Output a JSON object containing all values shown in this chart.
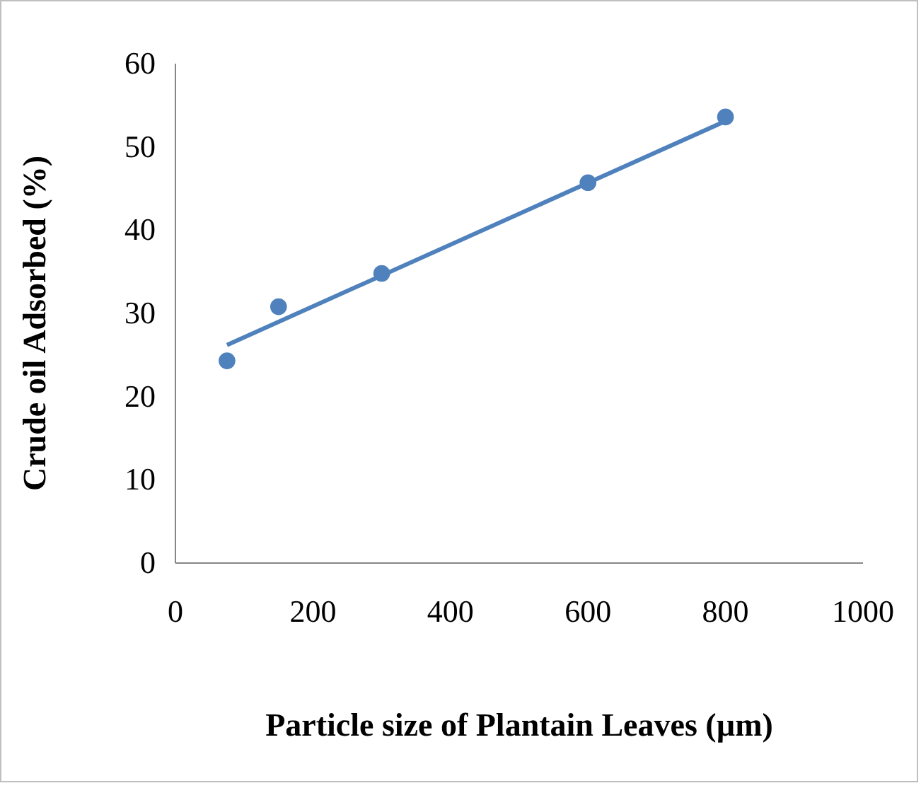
{
  "chart_data": {
    "type": "scatter",
    "xlabel": "Particle size of Plantain Leaves (µm)",
    "ylabel": "Crude oil Adsorbed (%)",
    "xlim": [
      0,
      1000
    ],
    "ylim": [
      0,
      60
    ],
    "xticks": [
      0,
      200,
      400,
      600,
      800,
      1000
    ],
    "yticks": [
      0,
      10,
      20,
      30,
      40,
      50,
      60
    ],
    "grid": false,
    "series": [
      {
        "color": "#4f81bd",
        "marker": "circle",
        "x": [
          75,
          150,
          300,
          600,
          800
        ],
        "values": [
          24.3,
          30.8,
          34.8,
          45.7,
          53.6
        ]
      },
      {
        "type": "line",
        "color": "#4f81bd",
        "marker": "none",
        "line_style": "solid",
        "x": [
          75,
          800
        ],
        "values": [
          26.2,
          53.1
        ]
      }
    ]
  }
}
